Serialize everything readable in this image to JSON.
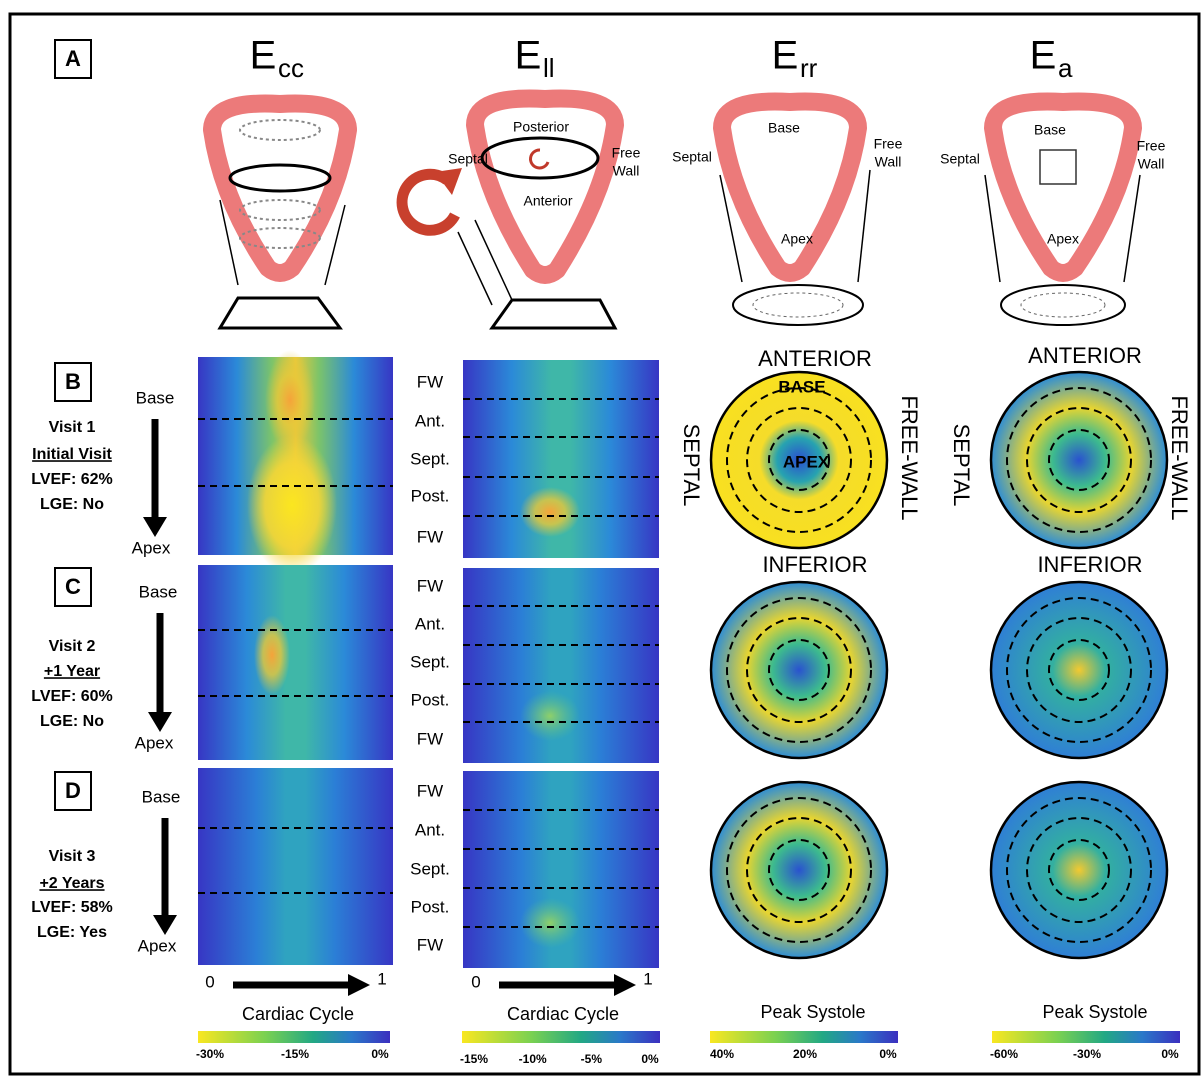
{
  "panel_labels": [
    "A",
    "B",
    "C",
    "D"
  ],
  "columns": [
    {
      "symbol": "E",
      "subscript": "cc"
    },
    {
      "symbol": "E",
      "subscript": "ll"
    },
    {
      "symbol": "E",
      "subscript": "rr"
    },
    {
      "symbol": "E",
      "subscript": "a"
    }
  ],
  "diagrams": {
    "ell": {
      "posterior": "Posterior",
      "septal": "Septal",
      "free_wall": [
        "Free",
        "Wall"
      ],
      "anterior": "Anterior"
    },
    "err": {
      "base": "Base",
      "septal": "Septal",
      "free_wall": [
        "Free",
        "Wall"
      ],
      "apex": "Apex"
    },
    "ea": {
      "base": "Base",
      "septal": "Septal",
      "free_wall": [
        "Free",
        "Wall"
      ],
      "apex": "Apex"
    }
  },
  "rows": [
    {
      "base": "Base",
      "apex": "Apex",
      "visit": [
        "Visit 1",
        "Initial Visit",
        "LVEF: 62%",
        "LGE: No"
      ],
      "segments": [
        "FW",
        "Ant.",
        "Sept.",
        "Post.",
        "FW"
      ]
    },
    {
      "base": "Base",
      "apex": "Apex",
      "visit": [
        "Visit 2",
        "+1 Year",
        "LVEF: 60%",
        "LGE: No"
      ],
      "segments": [
        "FW",
        "Ant.",
        "Sept.",
        "Post.",
        "FW"
      ]
    },
    {
      "base": "Base",
      "apex": "Apex",
      "visit": [
        "Visit 3",
        "+2 Years",
        "LVEF: 58%",
        "LGE: Yes"
      ],
      "segments": [
        "FW",
        "Ant.",
        "Sept.",
        "Post.",
        "FW"
      ]
    }
  ],
  "polar_labels": {
    "err": {
      "top": "ANTERIOR",
      "bottom": "INFERIOR",
      "left": "SEPTAL",
      "right": "FREE-WALL",
      "base": "BASE",
      "apex": "APEX"
    },
    "ea": {
      "top": "ANTERIOR",
      "bottom": "INFERIOR",
      "left": "SEPTAL",
      "right": "FREE-WALL"
    }
  },
  "axes": [
    {
      "start": "0",
      "end": "1",
      "label": "Cardiac Cycle"
    },
    {
      "start": "0",
      "end": "1",
      "label": "Cardiac Cycle"
    },
    {
      "label": "Peak Systole"
    },
    {
      "label": "Peak Systole"
    }
  ],
  "colorbars": [
    [
      "-30%",
      "-15%",
      "0%"
    ],
    [
      "-15%",
      "-10%",
      "-5%",
      "0%"
    ],
    [
      "40%",
      "20%",
      "0%"
    ],
    [
      "-60%",
      "-30%",
      "0%"
    ]
  ]
}
